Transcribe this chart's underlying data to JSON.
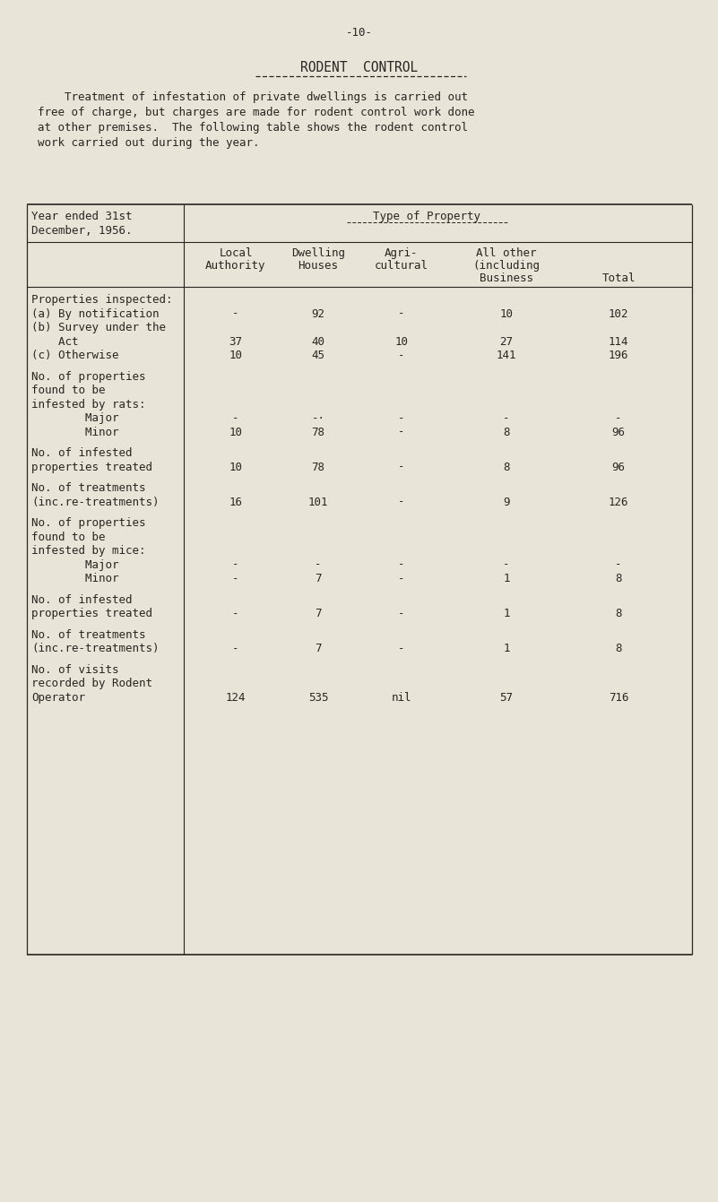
{
  "page_number": "-10-",
  "title": "RODENT  CONTROL",
  "intro_text": [
    "    Treatment of infestation of private dwellings is carried out",
    "free of charge, but charges are made for rodent control work done",
    "at other premises.  The following table shows the rodent control",
    "work carried out during the year."
  ],
  "rows": [
    {
      "label": "Properties inspected:",
      "cols": [
        "",
        "",
        "",
        "",
        ""
      ],
      "gap_before": false
    },
    {
      "label": "(a) By notification",
      "cols": [
        "-",
        "92",
        "-",
        "10",
        "102"
      ],
      "gap_before": false
    },
    {
      "label": "(b) Survey under the",
      "cols": [
        "",
        "",
        "",
        "",
        ""
      ],
      "gap_before": false
    },
    {
      "label": "    Act",
      "cols": [
        "37",
        "40",
        "10",
        "27",
        "114"
      ],
      "gap_before": false
    },
    {
      "label": "(c) Otherwise",
      "cols": [
        "10",
        "45",
        "-",
        "141",
        "196"
      ],
      "gap_before": false
    },
    {
      "label": "No. of properties",
      "cols": [
        "",
        "",
        "",
        "",
        ""
      ],
      "gap_before": true
    },
    {
      "label": "found to be",
      "cols": [
        "",
        "",
        "",
        "",
        ""
      ],
      "gap_before": false
    },
    {
      "label": "infested by rats:",
      "cols": [
        "",
        "",
        "",
        "",
        ""
      ],
      "gap_before": false
    },
    {
      "label": "        Major",
      "cols": [
        "-",
        "-·",
        "-",
        "-",
        "-"
      ],
      "gap_before": false
    },
    {
      "label": "        Minor",
      "cols": [
        "10",
        "78",
        "-",
        "8",
        "96"
      ],
      "gap_before": false
    },
    {
      "label": "No. of infested",
      "cols": [
        "",
        "",
        "",
        "",
        ""
      ],
      "gap_before": true
    },
    {
      "label": "properties treated",
      "cols": [
        "10",
        "78",
        "-",
        "8",
        "96"
      ],
      "gap_before": false
    },
    {
      "label": "No. of treatments",
      "cols": [
        "",
        "",
        "",
        "",
        ""
      ],
      "gap_before": true
    },
    {
      "label": "(inc.re-treatments)",
      "cols": [
        "16",
        "101",
        "-",
        "9",
        "126"
      ],
      "gap_before": false
    },
    {
      "label": "No. of properties",
      "cols": [
        "",
        "",
        "",
        "",
        ""
      ],
      "gap_before": true
    },
    {
      "label": "found to be",
      "cols": [
        "",
        "",
        "",
        "",
        ""
      ],
      "gap_before": false
    },
    {
      "label": "infested by mice:",
      "cols": [
        "",
        "",
        "",
        "",
        ""
      ],
      "gap_before": false
    },
    {
      "label": "        Major",
      "cols": [
        "-",
        "-",
        "-",
        "-",
        "-"
      ],
      "gap_before": false
    },
    {
      "label": "        Minor",
      "cols": [
        "-",
        "7",
        "-",
        "1",
        "8"
      ],
      "gap_before": false
    },
    {
      "label": "No. of infested",
      "cols": [
        "",
        "",
        "",
        "",
        ""
      ],
      "gap_before": true
    },
    {
      "label": "properties treated",
      "cols": [
        "-",
        "7",
        "-",
        "1",
        "8"
      ],
      "gap_before": false
    },
    {
      "label": "No. of treatments",
      "cols": [
        "",
        "",
        "",
        "",
        ""
      ],
      "gap_before": true
    },
    {
      "label": "(inc.re-treatments)",
      "cols": [
        "-",
        "7",
        "-",
        "1",
        "8"
      ],
      "gap_before": false
    },
    {
      "label": "No. of visits",
      "cols": [
        "",
        "",
        "",
        "",
        ""
      ],
      "gap_before": true
    },
    {
      "label": "recorded by Rodent",
      "cols": [
        "",
        "",
        "",
        "",
        ""
      ],
      "gap_before": false
    },
    {
      "label": "Operator",
      "cols": [
        "124",
        "535",
        "nil",
        "57",
        "716"
      ],
      "gap_before": false
    }
  ],
  "bg_color": "#e8e4d8",
  "text_color": "#2a2520",
  "font_size": 9.0,
  "title_font_size": 10.5
}
